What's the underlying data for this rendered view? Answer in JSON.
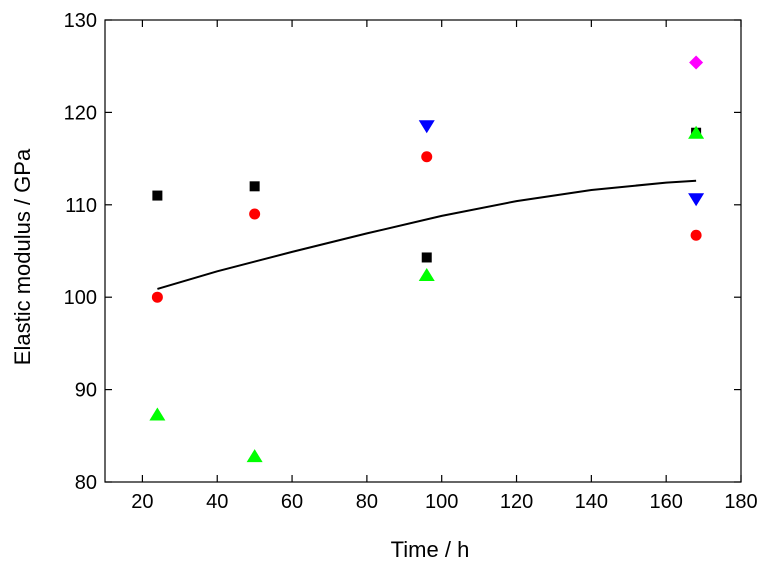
{
  "chart_data": {
    "type": "scatter",
    "title": "",
    "xlabel": "Time / h",
    "ylabel": "Elastic modulus / GPa",
    "xlim": [
      10,
      180
    ],
    "ylim": [
      80,
      130
    ],
    "xticks": [
      20,
      40,
      60,
      80,
      100,
      120,
      140,
      160,
      180
    ],
    "yticks": [
      80,
      90,
      100,
      110,
      120,
      130
    ],
    "grid": false,
    "series": [
      {
        "marker": "square",
        "color": "#000000",
        "points": [
          [
            24,
            111
          ],
          [
            50,
            112
          ],
          [
            96,
            104.3
          ],
          [
            168,
            117.8
          ]
        ]
      },
      {
        "marker": "circle",
        "color": "#ff0000",
        "points": [
          [
            24,
            100
          ],
          [
            50,
            109
          ],
          [
            96,
            115.2
          ],
          [
            168,
            106.7
          ]
        ]
      },
      {
        "marker": "triangle-up",
        "color": "#00ff00",
        "points": [
          [
            24,
            87.3
          ],
          [
            50,
            82.8
          ],
          [
            96,
            102.4
          ],
          [
            168,
            117.8
          ]
        ]
      },
      {
        "marker": "triangle-down",
        "color": "#0000ff",
        "points": [
          [
            96,
            118.5
          ],
          [
            168,
            110.6
          ]
        ]
      },
      {
        "marker": "diamond",
        "color": "#ff00ff",
        "points": [
          [
            168,
            125.4
          ]
        ]
      }
    ],
    "trend_line": {
      "color": "#000000",
      "points": [
        [
          24,
          100.9
        ],
        [
          40,
          102.8
        ],
        [
          60,
          104.9
        ],
        [
          80,
          106.9
        ],
        [
          100,
          108.8
        ],
        [
          120,
          110.4
        ],
        [
          140,
          111.6
        ],
        [
          160,
          112.4
        ],
        [
          168,
          112.6
        ]
      ]
    }
  }
}
